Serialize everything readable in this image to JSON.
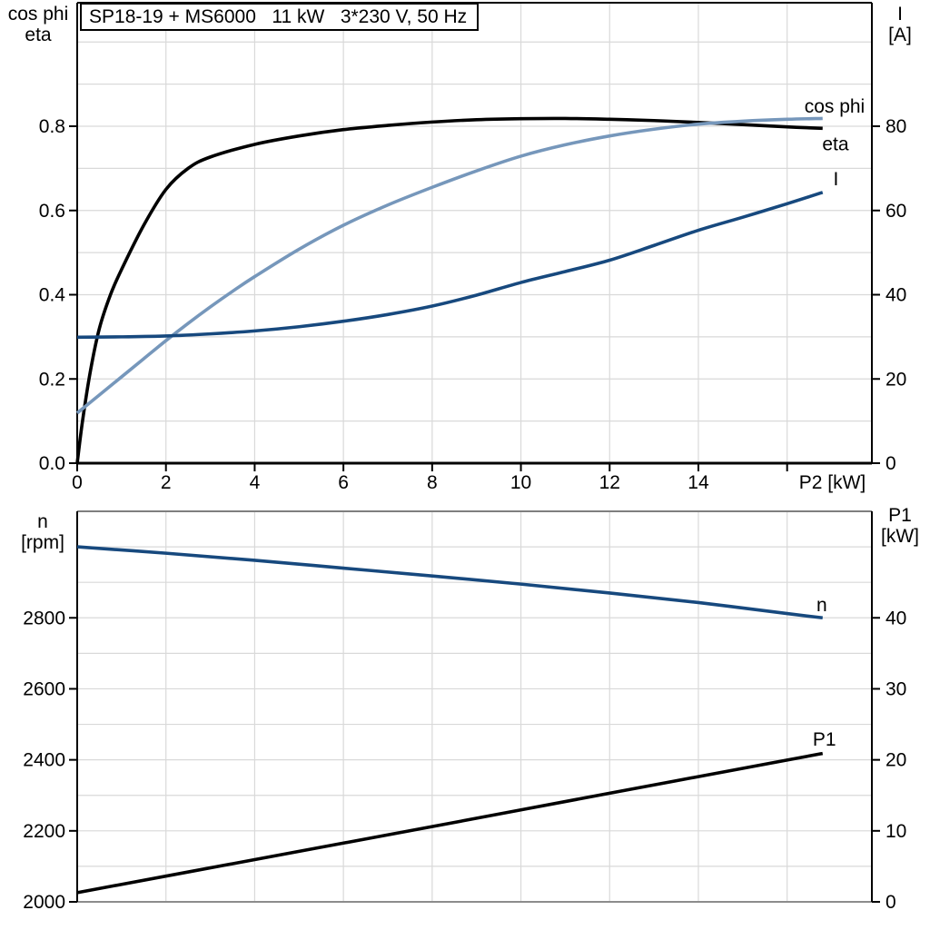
{
  "title": "SP18-19 + MS6000   11 kW   3*230 V, 50 Hz",
  "chart_data": [
    {
      "type": "line",
      "title": "SP18-19 + MS6000   11 kW   3*230 V, 50 Hz",
      "x_axis": {
        "caption": "P2 [kW]",
        "caption_x": 17.02,
        "min": 0,
        "max": 17.91,
        "grid": [
          2,
          4,
          6,
          8,
          10,
          12,
          14,
          16
        ],
        "ticks": [
          0,
          2,
          4,
          6,
          8,
          10,
          12,
          14,
          16
        ],
        "tick_labels": [
          "0",
          "2",
          "4",
          "6",
          "8",
          "10",
          "12",
          "14",
          ""
        ]
      },
      "y_left": {
        "name_lines": [
          "cos phi",
          "eta"
        ],
        "min": 0,
        "max": 1.0933,
        "grid": [
          0.1,
          0.2,
          0.3,
          0.4,
          0.5,
          0.6,
          0.7,
          0.8,
          0.9,
          1.0
        ],
        "ticks": [
          0,
          0.2,
          0.4,
          0.6,
          0.8
        ],
        "tick_labels": [
          "0.0",
          "0.2",
          "0.4",
          "0.6",
          "0.8"
        ]
      },
      "y_right": {
        "name_lines": [
          "I",
          "[A]"
        ],
        "min": 0,
        "max": 109.33,
        "ticks": [
          0,
          20,
          40,
          60,
          80
        ],
        "tick_labels": [
          "0",
          "20",
          "40",
          "60",
          "80"
        ]
      },
      "series": [
        {
          "name": "eta",
          "label": "eta",
          "axis": "left",
          "color": "#000000",
          "label_pos": [
            17.09,
            0.758
          ],
          "points": [
            [
              0,
              0
            ],
            [
              0.12,
              0.1
            ],
            [
              0.3,
              0.22
            ],
            [
              0.5,
              0.32
            ],
            [
              0.75,
              0.4
            ],
            [
              1,
              0.46
            ],
            [
              1.5,
              0.565
            ],
            [
              2,
              0.65
            ],
            [
              2.5,
              0.7
            ],
            [
              3,
              0.727
            ],
            [
              4,
              0.757
            ],
            [
              5,
              0.777
            ],
            [
              6,
              0.792
            ],
            [
              7,
              0.802
            ],
            [
              8,
              0.81
            ],
            [
              9,
              0.8155
            ],
            [
              10,
              0.818
            ],
            [
              11,
              0.8185
            ],
            [
              12,
              0.8165
            ],
            [
              13,
              0.8135
            ],
            [
              14,
              0.809
            ],
            [
              15,
              0.804
            ],
            [
              16,
              0.7985
            ],
            [
              16.8,
              0.795
            ]
          ]
        },
        {
          "name": "cos-phi",
          "label": "cos phi",
          "axis": "left",
          "color": "#7697bb",
          "label_pos": [
            17.07,
            0.847
          ],
          "points": [
            [
              0,
              0.119
            ],
            [
              0.5,
              0.162
            ],
            [
              1,
              0.205
            ],
            [
              1.5,
              0.248
            ],
            [
              2,
              0.291
            ],
            [
              2.5,
              0.332
            ],
            [
              3,
              0.371
            ],
            [
              3.5,
              0.408
            ],
            [
              4,
              0.443
            ],
            [
              5,
              0.508
            ],
            [
              6,
              0.565
            ],
            [
              7,
              0.613
            ],
            [
              8,
              0.655
            ],
            [
              9,
              0.694
            ],
            [
              10,
              0.729
            ],
            [
              11,
              0.756
            ],
            [
              12,
              0.777
            ],
            [
              13,
              0.793
            ],
            [
              14,
              0.805
            ],
            [
              15,
              0.812
            ],
            [
              16,
              0.8165
            ],
            [
              16.8,
              0.8185
            ]
          ]
        },
        {
          "name": "current",
          "label": "I",
          "axis": "right",
          "color": "#17497e",
          "label_pos": [
            17.1,
            67.5
          ],
          "points": [
            [
              0,
              29.9
            ],
            [
              1,
              30.0
            ],
            [
              2,
              30.2
            ],
            [
              3,
              30.7
            ],
            [
              4,
              31.4
            ],
            [
              5,
              32.4
            ],
            [
              6,
              33.7
            ],
            [
              7,
              35.3
            ],
            [
              8,
              37.3
            ],
            [
              9,
              39.9
            ],
            [
              10,
              42.9
            ],
            [
              11,
              45.5
            ],
            [
              12,
              48.2
            ],
            [
              13,
              51.7
            ],
            [
              14,
              55.3
            ],
            [
              15,
              58.4
            ],
            [
              16,
              61.6
            ],
            [
              16.8,
              64.3
            ]
          ]
        }
      ]
    },
    {
      "type": "line",
      "title": "",
      "x_axis": {
        "caption": "",
        "caption_x": 0,
        "min": 0,
        "max": 17.91,
        "grid": [
          2,
          4,
          6,
          8,
          10,
          12,
          14,
          16
        ],
        "ticks": [],
        "tick_labels": []
      },
      "y_left": {
        "name_lines": [
          "n",
          "[rpm]"
        ],
        "min": 2000,
        "max": 3100,
        "grid": [
          2100,
          2200,
          2300,
          2400,
          2500,
          2600,
          2700,
          2800,
          2900,
          3000
        ],
        "ticks": [
          2000,
          2200,
          2400,
          2600,
          2800
        ],
        "tick_labels": [
          "2000",
          "2200",
          "2400",
          "2600",
          "2800"
        ]
      },
      "y_right": {
        "name_lines": [
          "P1",
          "[kW]"
        ],
        "min": 0,
        "max": 55,
        "ticks": [
          0,
          10,
          20,
          30,
          40
        ],
        "tick_labels": [
          "0",
          "10",
          "20",
          "30",
          "40"
        ]
      },
      "series": [
        {
          "name": "speed",
          "label": "n",
          "axis": "left",
          "color": "#17497e",
          "label_pos": [
            16.78,
            2836
          ],
          "points": [
            [
              0,
              3000
            ],
            [
              2,
              2982
            ],
            [
              4,
              2962
            ],
            [
              6,
              2940
            ],
            [
              8,
              2918
            ],
            [
              10,
              2895
            ],
            [
              12,
              2870
            ],
            [
              14,
              2843
            ],
            [
              16,
              2812
            ],
            [
              16.8,
              2800
            ]
          ]
        },
        {
          "name": "p1",
          "label": "P1",
          "axis": "right",
          "color": "#000000",
          "label_pos": [
            16.84,
            22.9
          ],
          "points": [
            [
              0,
              1.3
            ],
            [
              4,
              5.95
            ],
            [
              8,
              10.6
            ],
            [
              12,
              15.3
            ],
            [
              16,
              19.97
            ],
            [
              16.8,
              20.9
            ]
          ]
        }
      ]
    }
  ]
}
